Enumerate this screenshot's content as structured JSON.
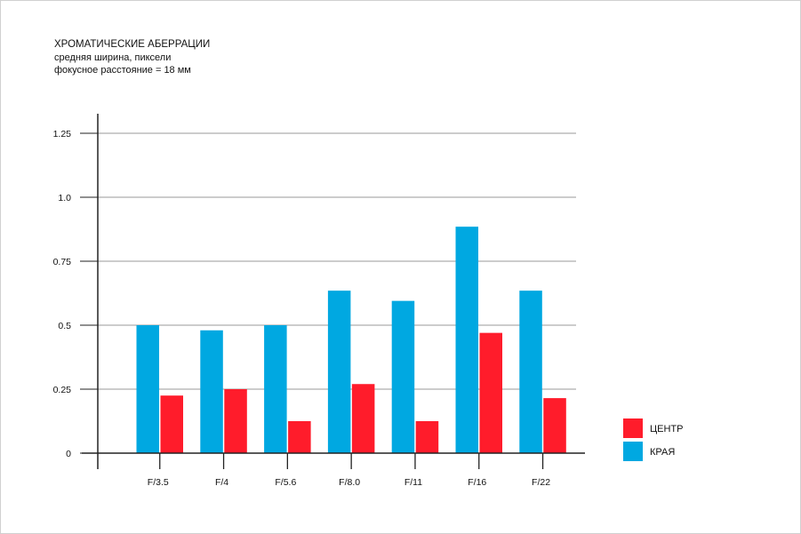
{
  "chart_data": {
    "type": "bar",
    "title": "ХРОМАТИЧЕСКИЕ АБЕРРАЦИИ",
    "subtitle": "средняя ширина, пиксели",
    "subtitle2": "фокусное расстояние = 18 мм",
    "xlabel": "",
    "ylabel": "",
    "categories": [
      "F/3.5",
      "F/4",
      "F/5.6",
      "F/8.0",
      "F/11",
      "F/16",
      "F/22"
    ],
    "series": [
      {
        "name": "КРАЯ",
        "color": "#00a8e1",
        "values": [
          0.5,
          0.48,
          0.5,
          0.635,
          0.595,
          0.885,
          0.635
        ]
      },
      {
        "name": "ЦЕНТР",
        "color": "#ff1c2b",
        "values": [
          0.225,
          0.25,
          0.125,
          0.27,
          0.125,
          0.47,
          0.215
        ]
      }
    ],
    "ylim": [
      0,
      1.25
    ],
    "yticks": [
      0,
      0.25,
      0.5,
      0.75,
      1.0,
      1.25
    ],
    "ytick_labels": [
      "0",
      "0.25",
      "0.5",
      "0.75",
      "1.0",
      "1.25"
    ],
    "grid": true,
    "legend": {
      "placement": "right",
      "entries": [
        {
          "label": "ЦЕНТР",
          "color": "#ff1c2b"
        },
        {
          "label": "КРАЯ",
          "color": "#00a8e1"
        }
      ]
    }
  }
}
